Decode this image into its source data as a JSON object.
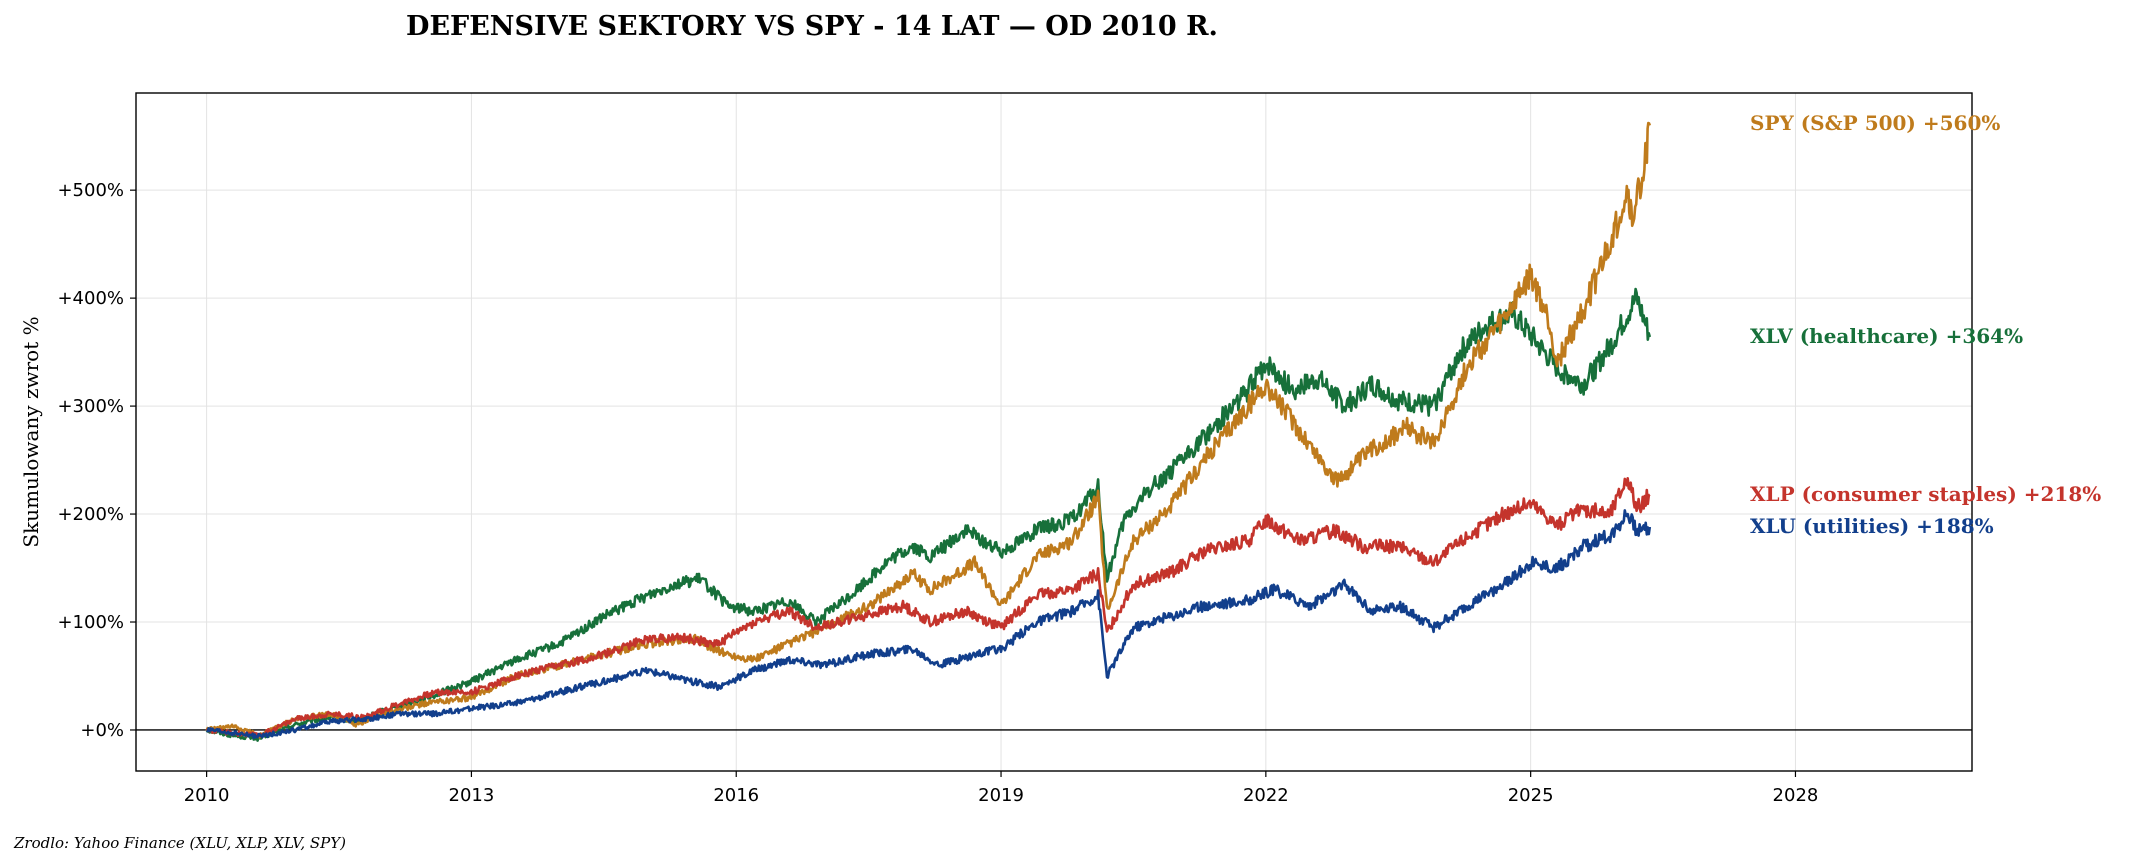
{
  "chart_data": {
    "type": "line",
    "title": "DEFENSIVE SEKTORY VS SPY - 14 LAT — OD 2010 R.",
    "ylabel": "Skumulowany zwrot %",
    "xlabel": "",
    "source": "Zrodlo: Yahoo Finance (XLU, XLP, XLV, SPY)",
    "xlim": [
      2009.2,
      2030.0
    ],
    "ylim": [
      -38,
      590
    ],
    "x_ticks": [
      2010,
      2013,
      2016,
      2019,
      2022,
      2025,
      2028
    ],
    "y_ticks": [
      0,
      100,
      200,
      300,
      400,
      500
    ],
    "y_tick_labels": [
      "+0%",
      "+100%",
      "+200%",
      "+300%",
      "+400%",
      "+500%"
    ],
    "grid": true,
    "zero_line": true,
    "legend": "end-of-line labels (right)",
    "series": [
      {
        "name": "XLV (healthcare)",
        "color": "#17703a",
        "end_label": "XLV (healthcare)  +364%",
        "x": [
          2010.0,
          2010.3,
          2010.6,
          2011.0,
          2011.4,
          2011.7,
          2012.0,
          2012.5,
          2013.0,
          2013.5,
          2014.0,
          2014.5,
          2015.0,
          2015.3,
          2015.6,
          2015.9,
          2016.2,
          2016.6,
          2016.9,
          2017.3,
          2017.7,
          2018.0,
          2018.2,
          2018.6,
          2019.0,
          2019.4,
          2019.8,
          2020.1,
          2020.2,
          2020.4,
          2020.7,
          2021.0,
          2021.4,
          2021.8,
          2022.0,
          2022.3,
          2022.6,
          2022.9,
          2023.2,
          2023.5,
          2023.9,
          2024.2,
          2024.5,
          2024.8,
          2025.0,
          2025.3,
          2025.6,
          2025.9,
          2026.2,
          2026.35
        ],
        "y": [
          0,
          -5,
          -8,
          5,
          12,
          8,
          18,
          30,
          45,
          65,
          80,
          105,
          125,
          135,
          140,
          115,
          110,
          120,
          100,
          125,
          155,
          170,
          160,
          185,
          165,
          185,
          195,
          225,
          140,
          195,
          225,
          245,
          280,
          315,
          340,
          315,
          325,
          300,
          320,
          305,
          300,
          350,
          375,
          385,
          365,
          335,
          320,
          355,
          400,
          364
        ]
      },
      {
        "name": "SPY (S&P 500)",
        "color": "#bf7b1c",
        "end_label": "SPY (S&P 500)  +560%",
        "x": [
          2010.0,
          2010.3,
          2010.6,
          2011.0,
          2011.4,
          2011.7,
          2012.0,
          2012.5,
          2013.0,
          2013.5,
          2014.0,
          2014.5,
          2015.0,
          2015.5,
          2015.9,
          2016.2,
          2016.6,
          2017.0,
          2017.5,
          2018.0,
          2018.2,
          2018.7,
          2019.0,
          2019.4,
          2019.8,
          2020.1,
          2020.2,
          2020.5,
          2020.9,
          2021.3,
          2021.8,
          2022.0,
          2022.4,
          2022.8,
          2023.2,
          2023.6,
          2023.9,
          2024.3,
          2024.7,
          2025.0,
          2025.2,
          2025.3,
          2025.6,
          2025.9,
          2026.1,
          2026.15,
          2026.3,
          2026.35
        ],
        "y": [
          0,
          3,
          -5,
          10,
          15,
          5,
          15,
          25,
          30,
          50,
          60,
          70,
          80,
          85,
          70,
          65,
          80,
          95,
          115,
          145,
          130,
          155,
          115,
          160,
          175,
          215,
          110,
          175,
          205,
          250,
          300,
          320,
          275,
          230,
          260,
          280,
          265,
          340,
          380,
          420,
          380,
          340,
          390,
          450,
          500,
          470,
          530,
          560
        ]
      },
      {
        "name": "XLP (consumer staples)",
        "color": "#c4342c",
        "end_label": "XLP (consumer staples)  +218%",
        "x": [
          2010.0,
          2010.3,
          2010.6,
          2011.0,
          2011.4,
          2011.8,
          2012.2,
          2012.6,
          2013.0,
          2013.5,
          2014.0,
          2014.5,
          2015.0,
          2015.4,
          2015.8,
          2016.2,
          2016.6,
          2016.9,
          2017.4,
          2017.9,
          2018.2,
          2018.6,
          2019.0,
          2019.4,
          2019.8,
          2020.1,
          2020.2,
          2020.5,
          2020.9,
          2021.3,
          2021.8,
          2022.0,
          2022.4,
          2022.8,
          2023.1,
          2023.5,
          2023.9,
          2024.3,
          2024.7,
          2025.0,
          2025.3,
          2025.6,
          2025.9,
          2026.1,
          2026.2,
          2026.35
        ],
        "y": [
          0,
          -3,
          -5,
          10,
          15,
          12,
          25,
          35,
          35,
          50,
          60,
          70,
          85,
          85,
          80,
          100,
          110,
          95,
          105,
          115,
          100,
          110,
          95,
          125,
          130,
          145,
          90,
          135,
          145,
          165,
          175,
          195,
          175,
          185,
          170,
          170,
          155,
          180,
          200,
          210,
          190,
          205,
          200,
          235,
          205,
          218
        ]
      },
      {
        "name": "XLU (utilities)",
        "color": "#123f8c",
        "end_label": "XLU (utilities)  +188%",
        "x": [
          2010.0,
          2010.3,
          2010.6,
          2011.0,
          2011.4,
          2011.8,
          2012.2,
          2012.6,
          2013.0,
          2013.5,
          2014.0,
          2014.5,
          2015.0,
          2015.5,
          2015.8,
          2016.2,
          2016.6,
          2017.0,
          2017.5,
          2018.0,
          2018.3,
          2018.7,
          2019.0,
          2019.4,
          2019.8,
          2020.1,
          2020.2,
          2020.5,
          2020.9,
          2021.3,
          2021.8,
          2022.1,
          2022.5,
          2022.9,
          2023.2,
          2023.5,
          2023.9,
          2024.3,
          2024.7,
          2025.0,
          2025.3,
          2025.6,
          2025.9,
          2026.1,
          2026.2,
          2026.35
        ],
        "y": [
          0,
          -3,
          -6,
          0,
          8,
          10,
          15,
          15,
          20,
          25,
          35,
          45,
          55,
          45,
          40,
          55,
          65,
          60,
          70,
          75,
          60,
          70,
          75,
          100,
          110,
          125,
          50,
          95,
          105,
          115,
          120,
          130,
          115,
          135,
          110,
          115,
          95,
          115,
          135,
          155,
          150,
          170,
          180,
          200,
          185,
          188
        ]
      }
    ]
  }
}
